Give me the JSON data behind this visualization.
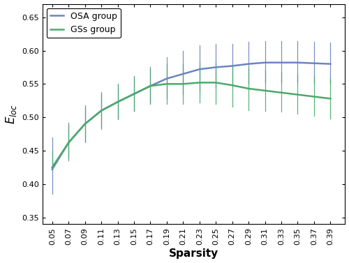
{
  "sparsity": [
    0.05,
    0.07,
    0.09,
    0.11,
    0.13,
    0.15,
    0.17,
    0.19,
    0.21,
    0.23,
    0.25,
    0.27,
    0.29,
    0.31,
    0.33,
    0.35,
    0.37,
    0.39
  ],
  "osa_mean": [
    0.422,
    0.462,
    0.49,
    0.51,
    0.523,
    0.535,
    0.547,
    0.558,
    0.565,
    0.572,
    0.575,
    0.577,
    0.58,
    0.582,
    0.582,
    0.582,
    0.581,
    0.58
  ],
  "osa_lo": [
    0.385,
    0.435,
    0.462,
    0.482,
    0.497,
    0.51,
    0.52,
    0.528,
    0.535,
    0.54,
    0.545,
    0.547,
    0.55,
    0.552,
    0.552,
    0.552,
    0.551,
    0.55
  ],
  "osa_hi": [
    0.47,
    0.492,
    0.518,
    0.538,
    0.55,
    0.562,
    0.575,
    0.59,
    0.6,
    0.608,
    0.61,
    0.61,
    0.613,
    0.614,
    0.614,
    0.614,
    0.613,
    0.612
  ],
  "gss_mean": [
    0.425,
    0.462,
    0.49,
    0.51,
    0.523,
    0.535,
    0.547,
    0.55,
    0.55,
    0.552,
    0.552,
    0.548,
    0.543,
    0.54,
    0.537,
    0.534,
    0.531,
    0.528
  ],
  "gss_lo": [
    0.422,
    0.438,
    0.465,
    0.485,
    0.498,
    0.51,
    0.522,
    0.52,
    0.52,
    0.522,
    0.52,
    0.516,
    0.511,
    0.51,
    0.508,
    0.505,
    0.502,
    0.498
  ],
  "gss_hi": [
    0.45,
    0.488,
    0.515,
    0.535,
    0.548,
    0.56,
    0.572,
    0.58,
    0.58,
    0.582,
    0.582,
    0.578,
    0.573,
    0.57,
    0.567,
    0.564,
    0.561,
    0.558
  ],
  "osa_color": "#6b84c0",
  "gss_color": "#4aaa6a",
  "osa_label": "OSA group",
  "gss_label": "GSs group",
  "xlabel": "Sparsity",
  "ylabel": "E_loc",
  "ylim": [
    0.34,
    0.67
  ],
  "yticks": [
    0.35,
    0.4,
    0.45,
    0.5,
    0.55,
    0.6,
    0.65
  ],
  "background_color": "#ffffff",
  "legend_loc": "upper left"
}
